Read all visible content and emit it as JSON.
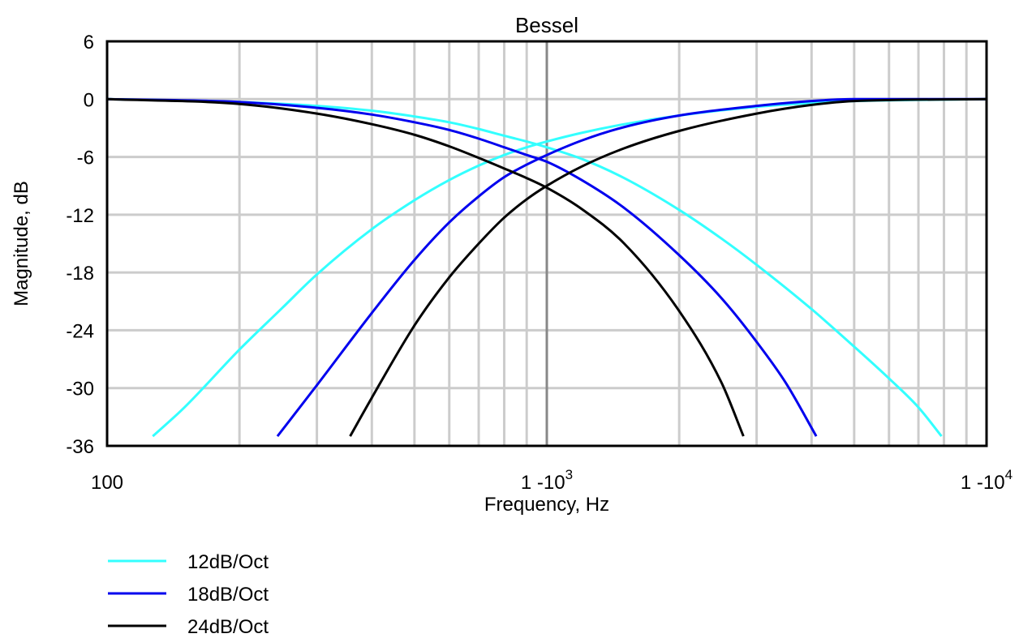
{
  "chart_data": {
    "type": "line",
    "title": "Bessel",
    "xlabel": "Frequency, Hz",
    "ylabel": "Magnitude, dB",
    "x_scale": "log",
    "xlim": [
      100,
      10000
    ],
    "ylim": [
      -36,
      6
    ],
    "y_ticks": [
      6,
      0,
      -6,
      -12,
      -18,
      -24,
      -30,
      -36
    ],
    "x_tick_labels": [
      {
        "value": 100,
        "base": "100",
        "exp": ""
      },
      {
        "value": 1000,
        "base": "1 -10",
        "exp": "3"
      },
      {
        "value": 10000,
        "base": "1 -10",
        "exp": "4"
      }
    ],
    "grid": true,
    "crossover_marker_x": 1000,
    "legend_position": "bottom-left",
    "series": [
      {
        "name": "12dB/Oct",
        "color": "#33ffff",
        "lowpass": {
          "x": [
            100,
            200,
            300,
            400,
            500,
            600,
            700,
            800,
            900,
            1000,
            1200,
            1500,
            2000,
            2500,
            3000,
            4000,
            5000,
            6000,
            7000,
            7900
          ],
          "y": [
            0,
            -0.3,
            -0.7,
            -1.2,
            -1.8,
            -2.4,
            -3.1,
            -3.8,
            -4.4,
            -5.0,
            -6.2,
            -8.2,
            -11.5,
            -14.5,
            -17.2,
            -21.8,
            -25.7,
            -29.0,
            -32.0,
            -35.0
          ]
        },
        "highpass": {
          "x": [
            127,
            150,
            200,
            250,
            300,
            400,
            500,
            600,
            700,
            800,
            900,
            1000,
            1200,
            1500,
            2000,
            3000,
            4000,
            5000,
            10000
          ],
          "y": [
            -35.0,
            -32.0,
            -26.0,
            -21.7,
            -18.2,
            -13.5,
            -10.5,
            -8.4,
            -6.9,
            -5.8,
            -5.0,
            -4.4,
            -3.5,
            -2.6,
            -1.7,
            -0.8,
            -0.4,
            -0.2,
            0
          ]
        }
      },
      {
        "name": "18dB/Oct",
        "color": "#0000ee",
        "lowpass": {
          "x": [
            100,
            200,
            300,
            400,
            500,
            600,
            700,
            800,
            900,
            1000,
            1200,
            1500,
            2000,
            2500,
            3000,
            3500,
            4100
          ],
          "y": [
            0,
            -0.3,
            -0.9,
            -1.6,
            -2.4,
            -3.2,
            -4.1,
            -5.0,
            -5.8,
            -6.5,
            -8.4,
            -11.3,
            -16.2,
            -20.7,
            -25.2,
            -29.5,
            -35.0
          ]
        },
        "highpass": {
          "x": [
            244,
            300,
            400,
            500,
            600,
            700,
            800,
            900,
            1000,
            1200,
            1500,
            2000,
            3000,
            4000,
            5000,
            10000
          ],
          "y": [
            -35.0,
            -29.7,
            -22.2,
            -16.7,
            -12.8,
            -10.1,
            -8.1,
            -6.8,
            -5.8,
            -4.3,
            -2.9,
            -1.7,
            -0.7,
            -0.2,
            0,
            0
          ]
        }
      },
      {
        "name": "24dB/Oct",
        "color": "#000000",
        "lowpass": {
          "x": [
            100,
            200,
            300,
            400,
            500,
            600,
            700,
            800,
            900,
            1000,
            1200,
            1500,
            2000,
            2500,
            2800
          ],
          "y": [
            0,
            -0.5,
            -1.5,
            -2.6,
            -3.7,
            -4.9,
            -6.1,
            -7.2,
            -8.2,
            -9.2,
            -11.4,
            -15.0,
            -22.0,
            -29.5,
            -35.0
          ]
        },
        "highpass": {
          "x": [
            357,
            400,
            500,
            600,
            700,
            800,
            900,
            1000,
            1200,
            1500,
            2000,
            3000,
            4000,
            5000,
            10000
          ],
          "y": [
            -35.0,
            -31.0,
            -23.5,
            -18.5,
            -15.0,
            -12.3,
            -10.4,
            -9.0,
            -7.0,
            -5.1,
            -3.3,
            -1.5,
            -0.6,
            -0.2,
            0
          ]
        }
      }
    ]
  }
}
